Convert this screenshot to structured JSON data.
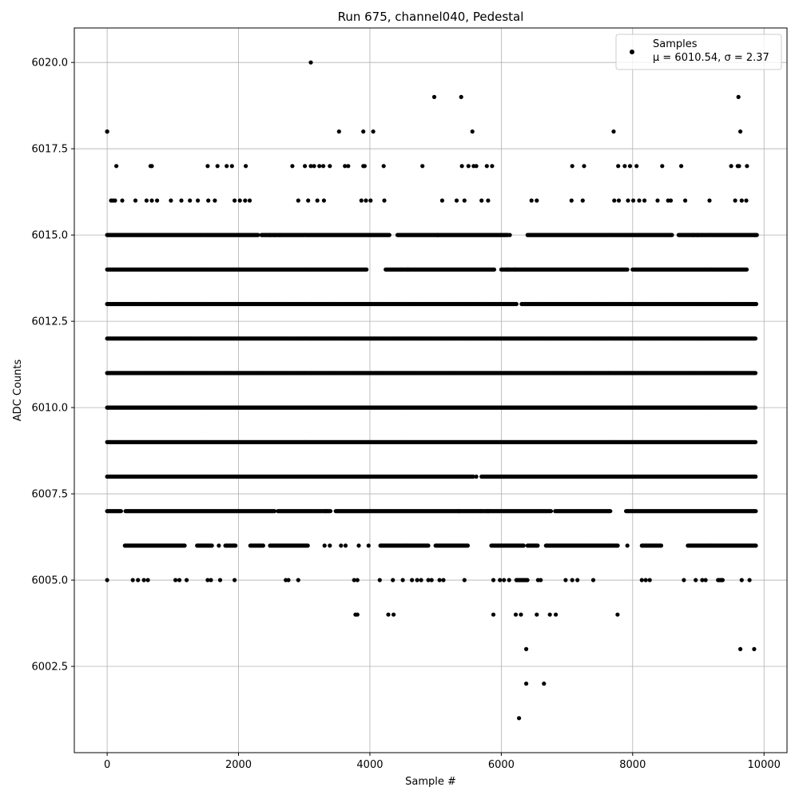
{
  "chart_data": {
    "type": "scatter",
    "title": "Run 675, channel040, Pedestal",
    "xlabel": "Sample #",
    "ylabel": "ADC Counts",
    "xlim": [
      -500,
      10350
    ],
    "ylim": [
      6000.0,
      6021.0
    ],
    "x_ticks": [
      0,
      2000,
      4000,
      6000,
      8000,
      10000
    ],
    "x_tick_labels": [
      "0",
      "2000",
      "4000",
      "6000",
      "8000",
      "10000"
    ],
    "y_ticks": [
      6002.5,
      6005.0,
      6007.5,
      6010.0,
      6012.5,
      6015.0,
      6017.5,
      6020.0
    ],
    "y_tick_labels": [
      "6002.5",
      "6005.0",
      "6007.5",
      "6010.0",
      "6012.5",
      "6015.0",
      "6017.5",
      "6020.0"
    ],
    "grid": true,
    "legend_position": "top-right",
    "marker_color": "#000000",
    "series": [
      {
        "name": "Samples",
        "legend_label": "Samples",
        "legend_stats": "μ = 6010.54, σ = 2.37",
        "x": [
          0,
          3100,
          4980,
          5390,
          9610,
          0,
          3530,
          3900,
          4050,
          5560,
          7710,
          9640,
          140,
          660,
          680,
          1530,
          1680,
          1820,
          1900,
          2110,
          2820,
          3010,
          3100,
          3150,
          3230,
          3290,
          3390,
          3620,
          3900,
          3920,
          4210,
          4800,
          5400,
          5500,
          5580,
          5620,
          5780,
          5860,
          7080,
          7260,
          7780,
          7880,
          7960,
          8060,
          8450,
          8740,
          9500,
          9600,
          9740,
          9620,
          3670,
          8540,
          60,
          90,
          120,
          230,
          430,
          600,
          680,
          760,
          970,
          1130,
          1260,
          1380,
          1540,
          1640,
          1940,
          2020,
          2100,
          2170,
          2910,
          3060,
          3200,
          3300,
          3870,
          3940,
          4010,
          4220,
          5100,
          5320,
          5440,
          5700,
          5800,
          6460,
          6540,
          7070,
          7240,
          7720,
          7790,
          7930,
          8010,
          8100,
          8180,
          8380,
          8580,
          8800,
          9170,
          9560,
          9660,
          9730,
          3810,
          3780,
          4280,
          4360,
          5880,
          6220,
          6300,
          6540,
          6740,
          6830,
          7770,
          6380,
          9640,
          9850,
          6380,
          6650,
          6270
        ],
        "y": [
          6018,
          6020,
          6019,
          6019,
          6019,
          6018,
          6018,
          6018,
          6018,
          6018,
          6018,
          6018,
          6017,
          6017,
          6017,
          6017,
          6017,
          6017,
          6017,
          6017,
          6017,
          6017,
          6017,
          6017,
          6017,
          6017,
          6017,
          6017,
          6017,
          6017,
          6017,
          6017,
          6017,
          6017,
          6017,
          6017,
          6017,
          6017,
          6017,
          6017,
          6017,
          6017,
          6017,
          6017,
          6017,
          6017,
          6017,
          6017,
          6017,
          6017,
          6017,
          6016,
          6016,
          6016,
          6016,
          6016,
          6016,
          6016,
          6016,
          6016,
          6016,
          6016,
          6016,
          6016,
          6016,
          6016,
          6016,
          6016,
          6016,
          6016,
          6016,
          6016,
          6016,
          6016,
          6016,
          6016,
          6016,
          6016,
          6016,
          6016,
          6016,
          6016,
          6016,
          6016,
          6016,
          6016,
          6016,
          6016,
          6016,
          6016,
          6016,
          6016,
          6016,
          6016,
          6016,
          6016,
          6016,
          6016,
          6016,
          6016,
          6004,
          6004,
          6004,
          6004,
          6004,
          6004,
          6004,
          6004,
          6004,
          6004,
          6004,
          6003,
          6003,
          6003,
          6002,
          6002,
          6001
        ]
      },
      {
        "name": "",
        "bands": [
          {
            "y": 6015,
            "segments": [
              [
                0,
                2300
              ],
              [
                2350,
                4300
              ],
              [
                4420,
                6100
              ],
              [
                6400,
                8600
              ],
              [
                8700,
                9900
              ]
            ],
            "isolated": [
              2480,
              2550,
              2630,
              5030,
              6130,
              8920,
              8990,
              9860
            ]
          },
          {
            "y": 6014,
            "segments": [
              [
                0,
                3950
              ],
              [
                4240,
                5900
              ],
              [
                6000,
                7920
              ],
              [
                8000,
                9740
              ]
            ],
            "isolated": [
              4480,
              4580,
              6090,
              6210
            ]
          },
          {
            "y": 6013,
            "segments": [
              [
                0,
                6240
              ],
              [
                6310,
                9880
              ]
            ]
          },
          {
            "y": 6012,
            "segments": [
              [
                0,
                9880
              ]
            ]
          },
          {
            "y": 6011,
            "segments": [
              [
                0,
                9880
              ]
            ]
          },
          {
            "y": 6010,
            "segments": [
              [
                0,
                9880
              ]
            ]
          },
          {
            "y": 6009,
            "segments": [
              [
                0,
                9880
              ]
            ]
          },
          {
            "y": 6008,
            "segments": [
              [
                0,
                5580
              ],
              [
                5700,
                9880
              ]
            ],
            "isolated": [
              5620
            ]
          },
          {
            "y": 6007,
            "segments": [
              [
                0,
                220
              ],
              [
                280,
                2560
              ],
              [
                2600,
                3400
              ],
              [
                3480,
                6760
              ],
              [
                6820,
                7660
              ],
              [
                7900,
                9880
              ]
            ],
            "isolated": [
              3330,
              5350,
              5680,
              5800
            ]
          },
          {
            "y": 6006,
            "segments": [
              [
                270,
                1180
              ],
              [
                1370,
                1600
              ],
              [
                1800,
                1960
              ],
              [
                2180,
                2380
              ],
              [
                2480,
                3060
              ],
              [
                4160,
                4900
              ],
              [
                5000,
                5500
              ],
              [
                5850,
                6350
              ],
              [
                6400,
                6560
              ],
              [
                6680,
                7780
              ],
              [
                8140,
                8440
              ],
              [
                8840,
                9880
              ]
            ],
            "isolated": [
              1700,
              3310,
              3390,
              3560,
              3630,
              3830,
              3980,
              7920
            ]
          },
          {
            "y": 6005,
            "segments": [
              [
                6230,
                6400
              ],
              [
                9300,
                9370
              ]
            ],
            "isolated": [
              0,
              390,
              470,
              560,
              620,
              1040,
              1100,
              1210,
              1530,
              1580,
              1720,
              1940,
              2720,
              2760,
              2910,
              3760,
              3810,
              4150,
              4350,
              4500,
              4640,
              4720,
              4780,
              4890,
              4940,
              5060,
              5120,
              5440,
              5880,
              5980,
              6040,
              6120,
              6560,
              6600,
              6980,
              7080,
              7160,
              7400,
              8140,
              8200,
              8260,
              8780,
              8960,
              9060,
              9110,
              9660,
              9780
            ]
          }
        ],
        "spacing": 14
      }
    ]
  }
}
